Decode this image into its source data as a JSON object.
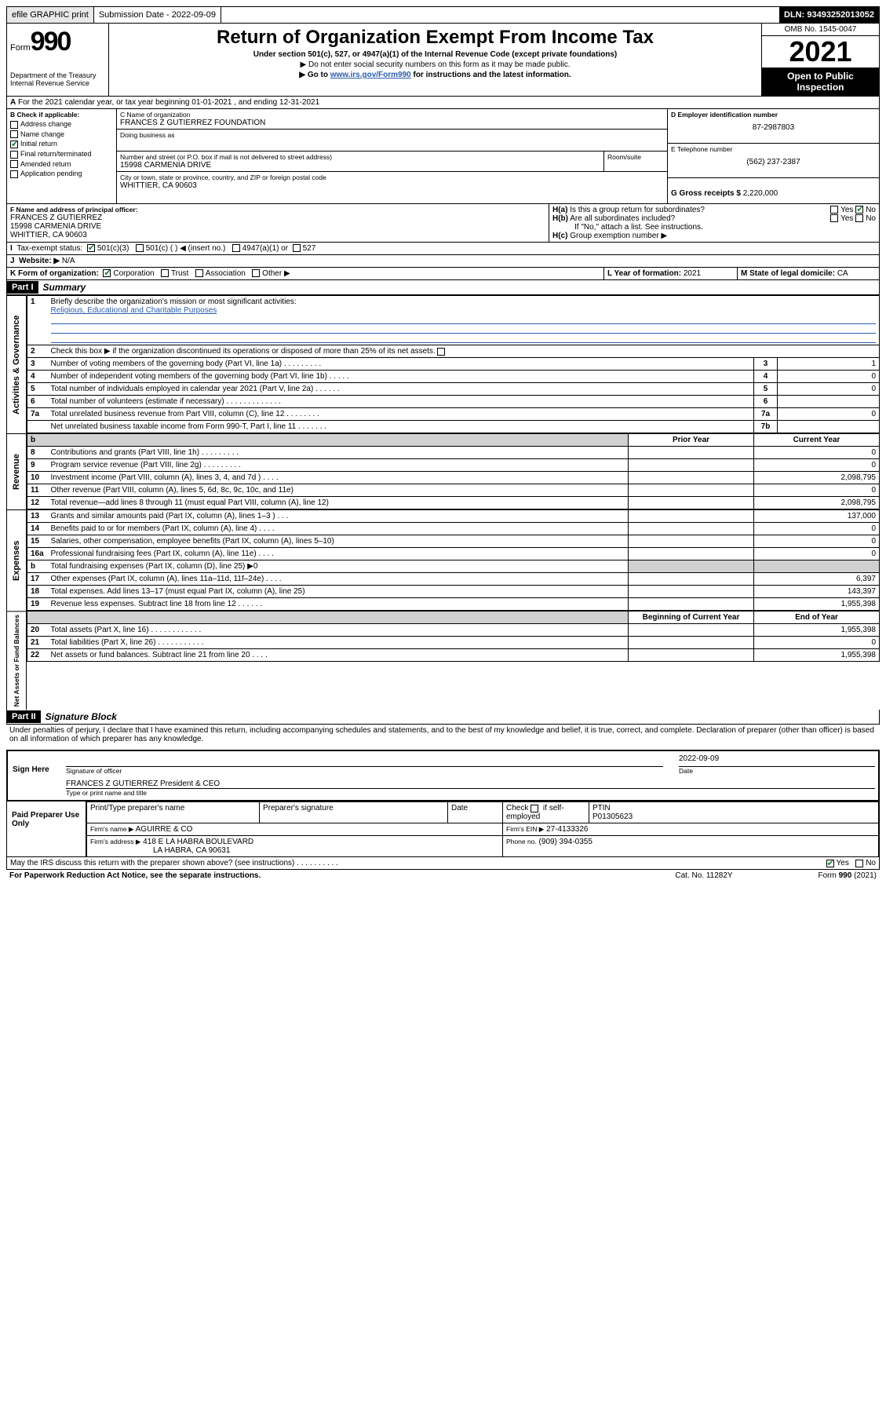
{
  "topbar": {
    "efile": "efile GRAPHIC print",
    "submission": "Submission Date - 2022-09-09",
    "dln": "DLN: 93493252013052"
  },
  "header": {
    "form_label": "Form",
    "form_num": "990",
    "dept": "Department of the Treasury",
    "irs": "Internal Revenue Service",
    "title": "Return of Organization Exempt From Income Tax",
    "subtitle": "Under section 501(c), 527, or 4947(a)(1) of the Internal Revenue Code (except private foundations)",
    "arrow1": "▶ Do not enter social security numbers on this form as it may be made public.",
    "arrow2_pre": "▶ Go to ",
    "arrow2_link": "www.irs.gov/Form990",
    "arrow2_post": " for instructions and the latest information.",
    "omb": "OMB No. 1545-0047",
    "year": "2021",
    "inspect": "Open to Public Inspection"
  },
  "A": {
    "text": "For the 2021 calendar year, or tax year beginning 01-01-2021    , and ending 12-31-2021"
  },
  "B": {
    "label": "B Check if applicable:",
    "items": [
      "Address change",
      "Name change",
      "Initial return",
      "Final return/terminated",
      "Amended return",
      "Application pending"
    ],
    "checked_idx": 2
  },
  "C": {
    "name_label": "C Name of organization",
    "name": "FRANCES Z GUTIERREZ FOUNDATION",
    "dba_label": "Doing business as",
    "street_label": "Number and street (or P.O. box if mail is not delivered to street address)",
    "room_label": "Room/suite",
    "street": "15998 CARMENIA DRIVE",
    "city_label": "City or town, state or province, country, and ZIP or foreign postal code",
    "city": "WHITTIER, CA  90603"
  },
  "D": {
    "label": "D Employer identification number",
    "value": "87-2987803"
  },
  "E": {
    "label": "E Telephone number",
    "value": "(562) 237-2387"
  },
  "G": {
    "label": "G Gross receipts $",
    "value": "2,220,000"
  },
  "F": {
    "label": "F Name and address of principal officer:",
    "name": "FRANCES Z GUTIERREZ",
    "street": "15998 CARMENIA DRIVE",
    "city": "WHITTIER, CA  90603"
  },
  "H": {
    "a": "Is this a group return for subordinates?",
    "a_yes": "Yes",
    "a_no": "No",
    "b": "Are all subordinates included?",
    "b_yes": "Yes",
    "b_no": "No",
    "b_note": "If \"No,\" attach a list. See instructions.",
    "c": "Group exemption number ▶"
  },
  "I": {
    "label": "Tax-exempt status:",
    "opt1": "501(c)(3)",
    "opt2": "501(c) (   ) ◀ (insert no.)",
    "opt3": "4947(a)(1) or",
    "opt4": "527"
  },
  "J": {
    "label": "Website: ▶",
    "value": "N/A"
  },
  "K": {
    "label": "K Form of organization:",
    "opts": [
      "Corporation",
      "Trust",
      "Association",
      "Other ▶"
    ]
  },
  "L": {
    "label": "L Year of formation:",
    "value": "2021"
  },
  "M": {
    "label": "M State of legal domicile:",
    "value": "CA"
  },
  "part1": {
    "label": "Part I",
    "title": "Summary"
  },
  "summary": {
    "q1_label": "Briefly describe the organization's mission or most significant activities:",
    "q1_text": "Religious, Educational and Charitable Purposes",
    "q2": "Check this box ▶      if the organization discontinued its operations or disposed of more than 25% of its net assets.",
    "rows_gov": [
      {
        "n": "3",
        "t": "Number of voting members of the governing body (Part VI, line 1a)   .    .    .    .    .    .    .    .    .",
        "box": "3",
        "v": "1"
      },
      {
        "n": "4",
        "t": "Number of independent voting members of the governing body (Part VI, line 1b)   .    .    .    .    .",
        "box": "4",
        "v": "0"
      },
      {
        "n": "5",
        "t": "Total number of individuals employed in calendar year 2021 (Part V, line 2a)   .    .    .    .    .    .",
        "box": "5",
        "v": "0"
      },
      {
        "n": "6",
        "t": "Total number of volunteers (estimate if necessary)   .    .    .    .    .    .    .    .    .    .    .    .    .",
        "box": "6",
        "v": ""
      },
      {
        "n": "7a",
        "t": "Total unrelated business revenue from Part VIII, column (C), line 12   .    .    .    .    .    .    .    .",
        "box": "7a",
        "v": "0"
      },
      {
        "n": "",
        "t": "Net unrelated business taxable income from Form 990-T, Part I, line 11   .    .    .    .    .    .    .",
        "box": "7b",
        "v": ""
      }
    ],
    "col_prior": "Prior Year",
    "col_current": "Current Year",
    "rows_rev": [
      {
        "n": "8",
        "t": "Contributions and grants (Part VIII, line 1h)   .    .    .    .    .    .    .    .    .",
        "p": "",
        "c": "0"
      },
      {
        "n": "9",
        "t": "Program service revenue (Part VIII, line 2g)   .    .    .    .    .    .    .    .    .",
        "p": "",
        "c": "0"
      },
      {
        "n": "10",
        "t": "Investment income (Part VIII, column (A), lines 3, 4, and 7d )   .    .    .    .",
        "p": "",
        "c": "2,098,795"
      },
      {
        "n": "11",
        "t": "Other revenue (Part VIII, column (A), lines 5, 6d, 8c, 9c, 10c, and 11e)",
        "p": "",
        "c": "0"
      },
      {
        "n": "12",
        "t": "Total revenue—add lines 8 through 11 (must equal Part VIII, column (A), line 12)",
        "p": "",
        "c": "2,098,795"
      }
    ],
    "rows_exp": [
      {
        "n": "13",
        "t": "Grants and similar amounts paid (Part IX, column (A), lines 1–3 )   .    .    .",
        "p": "",
        "c": "137,000"
      },
      {
        "n": "14",
        "t": "Benefits paid to or for members (Part IX, column (A), line 4)   .    .    .    .",
        "p": "",
        "c": "0"
      },
      {
        "n": "15",
        "t": "Salaries, other compensation, employee benefits (Part IX, column (A), lines 5–10)",
        "p": "",
        "c": "0"
      },
      {
        "n": "16a",
        "t": "Professional fundraising fees (Part IX, column (A), line 11e)   .    .    .    .",
        "p": "",
        "c": "0"
      },
      {
        "n": "b",
        "t": "Total fundraising expenses (Part IX, column (D), line 25) ▶0",
        "p": "shade",
        "c": "shade"
      },
      {
        "n": "17",
        "t": "Other expenses (Part IX, column (A), lines 11a–11d, 11f–24e)   .    .    .    .",
        "p": "",
        "c": "6,397"
      },
      {
        "n": "18",
        "t": "Total expenses. Add lines 13–17 (must equal Part IX, column (A), line 25)",
        "p": "",
        "c": "143,397"
      },
      {
        "n": "19",
        "t": "Revenue less expenses. Subtract line 18 from line 12   .    .    .    .    .    .",
        "p": "",
        "c": "1,955,398"
      }
    ],
    "col_beg": "Beginning of Current Year",
    "col_end": "End of Year",
    "rows_net": [
      {
        "n": "20",
        "t": "Total assets (Part X, line 16)   .    .    .    .    .    .    .    .    .    .    .    .",
        "p": "",
        "c": "1,955,398"
      },
      {
        "n": "21",
        "t": "Total liabilities (Part X, line 26)   .    .    .    .    .    .    .    .    .    .    .",
        "p": "",
        "c": "0"
      },
      {
        "n": "22",
        "t": "Net assets or fund balances. Subtract line 21 from line 20   .    .    .    .",
        "p": "",
        "c": "1,955,398"
      }
    ],
    "vlabels": {
      "gov": "Activities & Governance",
      "rev": "Revenue",
      "exp": "Expenses",
      "net": "Net Assets or Fund Balances"
    }
  },
  "part2": {
    "label": "Part II",
    "title": "Signature Block"
  },
  "perjury": "Under penalties of perjury, I declare that I have examined this return, including accompanying schedules and statements, and to the best of my knowledge and belief, it is true, correct, and complete. Declaration of preparer (other than officer) is based on all information of which preparer has any knowledge.",
  "sign": {
    "here": "Sign Here",
    "sig_label": "Signature of officer",
    "date_label": "Date",
    "date": "2022-09-09",
    "name": "FRANCES Z GUTIERREZ  President & CEO",
    "name_label": "Type or print name and title"
  },
  "preparer": {
    "title": "Paid Preparer Use Only",
    "c1": "Print/Type preparer's name",
    "c2": "Preparer's signature",
    "c3": "Date",
    "c4a": "Check",
    "c4b": "if self-employed",
    "c5": "PTIN",
    "ptin": "P01305623",
    "firm_name_label": "Firm's name   ▶",
    "firm_name": "AGUIRRE & CO",
    "firm_ein_label": "Firm's EIN ▶",
    "firm_ein": "27-4133326",
    "firm_addr_label": "Firm's address ▶",
    "firm_addr1": "418 E LA HABRA BOULEVARD",
    "firm_addr2": "LA HABRA, CA  90631",
    "phone_label": "Phone no.",
    "phone": "(909) 394-0355"
  },
  "footer": {
    "discuss": "May the IRS discuss this return with the preparer shown above? (see instructions)   .    .    .    .    .    .    .    .    .    .",
    "yes": "Yes",
    "no": "No",
    "paperwork": "For Paperwork Reduction Act Notice, see the separate instructions.",
    "cat": "Cat. No. 11282Y",
    "form": "Form 990 (2021)"
  }
}
